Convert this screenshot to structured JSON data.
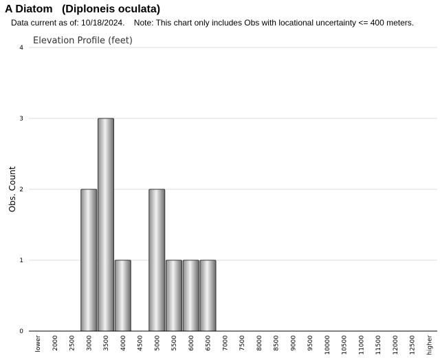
{
  "header": {
    "title": "A Diatom   (Diploneis oculata)",
    "subtitle": "Data current as of: 10/18/2024.    Note: This chart only includes Obs with locational uncertainty <= 400 meters."
  },
  "colors": {
    "bar_gradient": [
      "#8a8a8a",
      "#f2f2f2",
      "#6a6a6a"
    ],
    "bar_stroke": "#333333",
    "grid": "#dddddd",
    "axis": "#000000"
  },
  "chart_data": {
    "type": "bar",
    "title": "Elevation Profile (feet)",
    "xlabel": "",
    "ylabel": "Obs. Count",
    "ylim": [
      0,
      4
    ],
    "yticks": [
      "0",
      "1",
      "2",
      "3",
      "4"
    ],
    "grid": "horizontal",
    "categories": [
      "lower",
      "2000",
      "2500",
      "3000",
      "3500",
      "4000",
      "4500",
      "5000",
      "5500",
      "6000",
      "6500",
      "7000",
      "7500",
      "8000",
      "8500",
      "9000",
      "9500",
      "10000",
      "10500",
      "11000",
      "11500",
      "12000",
      "12500",
      "higher"
    ],
    "values": [
      0,
      0,
      0,
      2,
      3,
      1,
      0,
      2,
      1,
      1,
      1,
      0,
      0,
      0,
      0,
      0,
      0,
      0,
      0,
      0,
      0,
      0,
      0,
      0
    ]
  }
}
